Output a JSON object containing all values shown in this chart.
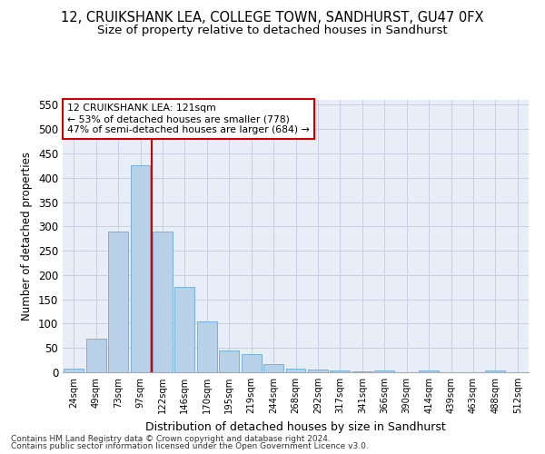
{
  "title": "12, CRUIKSHANK LEA, COLLEGE TOWN, SANDHURST, GU47 0FX",
  "subtitle": "Size of property relative to detached houses in Sandhurst",
  "xlabel": "Distribution of detached houses by size in Sandhurst",
  "ylabel": "Number of detached properties",
  "bar_labels": [
    "24sqm",
    "49sqm",
    "73sqm",
    "97sqm",
    "122sqm",
    "146sqm",
    "170sqm",
    "195sqm",
    "219sqm",
    "244sqm",
    "268sqm",
    "292sqm",
    "317sqm",
    "341sqm",
    "366sqm",
    "390sqm",
    "414sqm",
    "439sqm",
    "463sqm",
    "488sqm",
    "512sqm"
  ],
  "bar_values": [
    8,
    70,
    290,
    425,
    290,
    175,
    105,
    44,
    38,
    16,
    8,
    5,
    4,
    2,
    3,
    0,
    4,
    0,
    0,
    4,
    0
  ],
  "bar_color": "#b8d0e8",
  "bar_edge_color": "#6aaad4",
  "highlight_line_color": "#cc0000",
  "annotation_text_line1": "12 CRUIKSHANK LEA: 121sqm",
  "annotation_text_line2": "← 53% of detached houses are smaller (778)",
  "annotation_text_line3": "47% of semi-detached houses are larger (684) →",
  "annotation_box_color": "#ffffff",
  "annotation_box_edge": "#cc0000",
  "ylim": [
    0,
    560
  ],
  "yticks": [
    0,
    50,
    100,
    150,
    200,
    250,
    300,
    350,
    400,
    450,
    500,
    550
  ],
  "grid_color": "#c8cfe0",
  "bg_color": "#e8eef8",
  "footer1": "Contains HM Land Registry data © Crown copyright and database right 2024.",
  "footer2": "Contains public sector information licensed under the Open Government Licence v3.0.",
  "title_fontsize": 10.5,
  "subtitle_fontsize": 9.5,
  "highlight_bar_index": 4
}
